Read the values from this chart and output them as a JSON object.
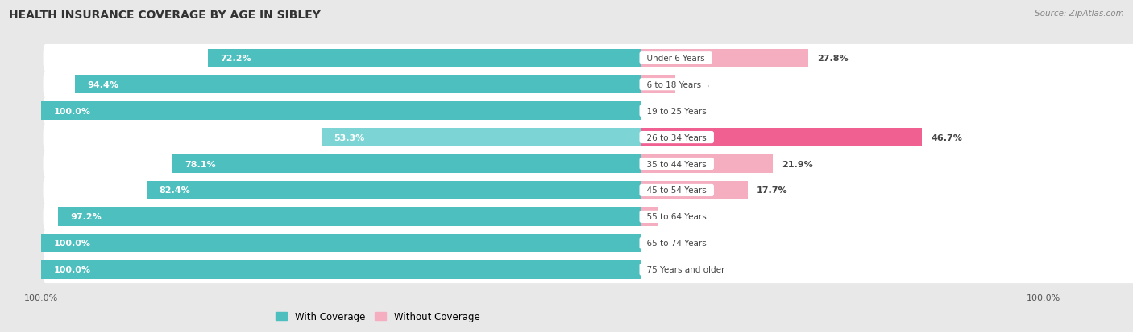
{
  "title": "HEALTH INSURANCE COVERAGE BY AGE IN SIBLEY",
  "source": "Source: ZipAtlas.com",
  "categories": [
    "Under 6 Years",
    "6 to 18 Years",
    "19 to 25 Years",
    "26 to 34 Years",
    "35 to 44 Years",
    "45 to 54 Years",
    "55 to 64 Years",
    "65 to 74 Years",
    "75 Years and older"
  ],
  "with_coverage": [
    72.2,
    94.4,
    100.0,
    53.3,
    78.1,
    82.4,
    97.2,
    100.0,
    100.0
  ],
  "without_coverage": [
    27.8,
    5.6,
    0.0,
    46.7,
    21.9,
    17.7,
    2.8,
    0.0,
    0.0
  ],
  "color_with": "#4dbfbf",
  "color_with_light": "#7dd4d4",
  "color_without_strong": "#f06090",
  "color_without_light": "#f4aec0",
  "bg_color": "#e8e8e8",
  "row_bg": "#f2f2f2",
  "title_fontsize": 10,
  "label_fontsize": 8,
  "legend_fontsize": 8.5,
  "axis_label_fontsize": 8
}
